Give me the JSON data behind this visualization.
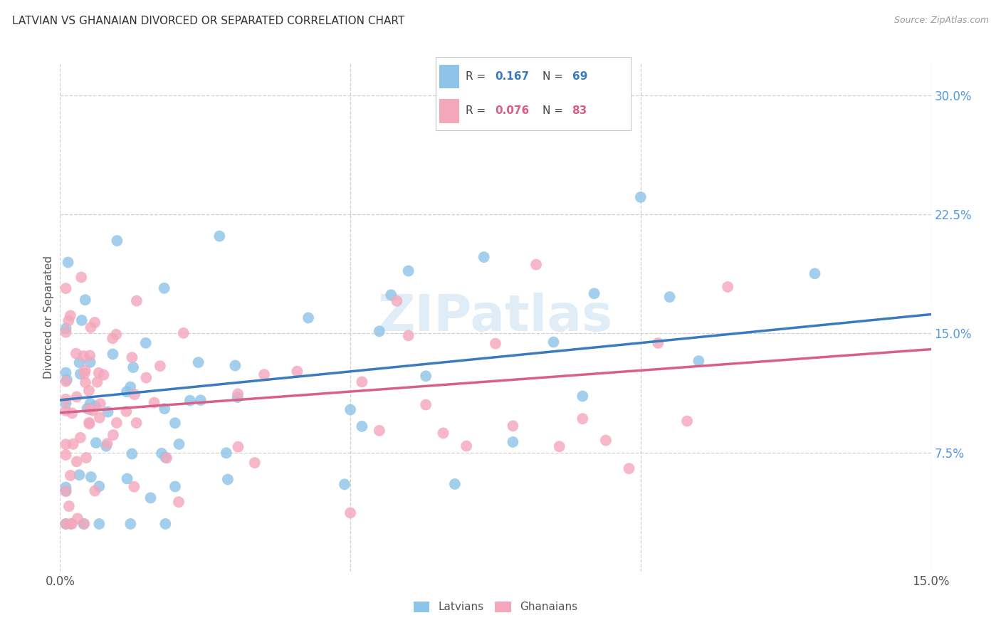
{
  "title": "LATVIAN VS GHANAIAN DIVORCED OR SEPARATED CORRELATION CHART",
  "source": "Source: ZipAtlas.com",
  "ylabel": "Divorced or Separated",
  "watermark": "ZIPatlas",
  "xlim": [
    0.0,
    0.15
  ],
  "ylim": [
    0.0,
    0.32
  ],
  "R_latvian": 0.167,
  "N_latvian": 69,
  "R_ghanaian": 0.076,
  "N_ghanaian": 83,
  "color_latvian": "#8ec4e8",
  "color_ghanaian": "#f4a7bb",
  "line_color_latvian": "#3a7abf",
  "line_color_ghanaian": "#d95f8a",
  "title_color": "#333333",
  "source_color": "#999999",
  "grid_color": "#d0d0d0",
  "background_color": "#ffffff",
  "lat_line_x0": 0.0,
  "lat_line_y0": 0.108,
  "lat_line_x1": 0.15,
  "lat_line_y1": 0.162,
  "gha_line_x0": 0.0,
  "gha_line_y0": 0.1,
  "gha_line_x1": 0.15,
  "gha_line_y1": 0.14
}
